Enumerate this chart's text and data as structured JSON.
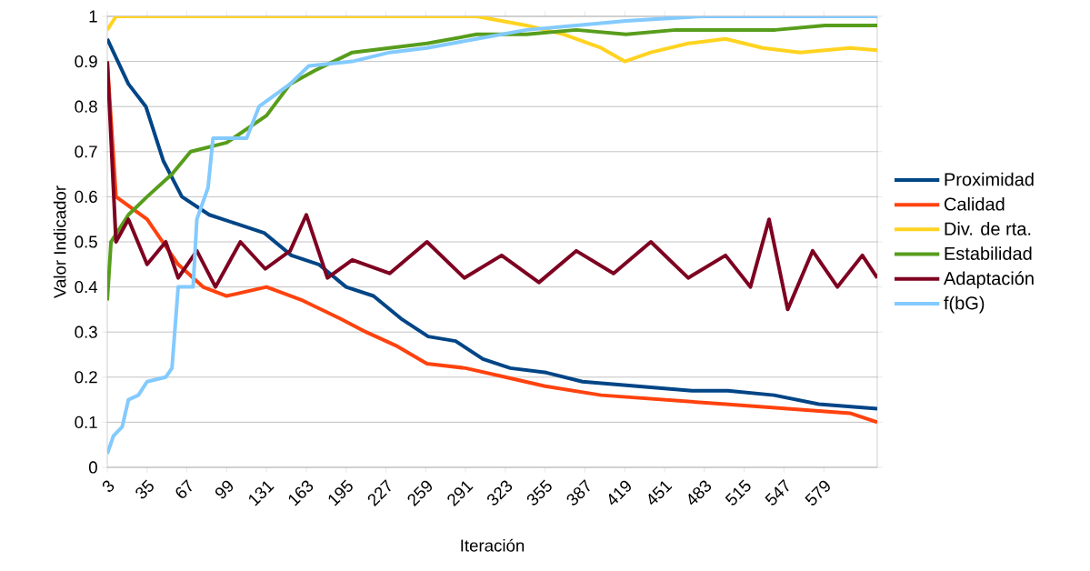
{
  "chart_data": {
    "type": "line",
    "xlabel": "Iteración",
    "ylabel": "Valor Indicador",
    "xlim": [
      3,
      622
    ],
    "ylim": [
      0,
      1
    ],
    "xticks": [
      3,
      35,
      67,
      99,
      131,
      163,
      195,
      227,
      259,
      291,
      323,
      355,
      387,
      419,
      451,
      483,
      515,
      547,
      579
    ],
    "yticks": [
      0,
      0.1,
      0.2,
      0.3,
      0.4,
      0.5,
      0.6,
      0.7,
      0.8,
      0.9,
      1
    ],
    "grid": "y",
    "legend": "right",
    "marker": "none",
    "line_style": "solid",
    "series": [
      {
        "name": "Proximidad",
        "color": "#004586",
        "x": [
          3,
          20,
          34,
          48,
          63,
          85,
          107,
          129,
          151,
          173,
          195,
          217,
          239,
          261,
          283,
          305,
          327,
          356,
          385,
          429,
          473,
          502,
          539,
          575,
          622
        ],
        "values": [
          0.95,
          0.85,
          0.8,
          0.68,
          0.6,
          0.56,
          0.54,
          0.52,
          0.47,
          0.45,
          0.4,
          0.38,
          0.33,
          0.29,
          0.28,
          0.24,
          0.22,
          0.21,
          0.19,
          0.18,
          0.17,
          0.17,
          0.16,
          0.14,
          0.13
        ]
      },
      {
        "name": "Calidad",
        "color": "#ff420e",
        "x": [
          3,
          10,
          35,
          60,
          80,
          99,
          131,
          160,
          190,
          211,
          235,
          260,
          291,
          323,
          355,
          400,
          450,
          500,
          550,
          600,
          622
        ],
        "values": [
          0.9,
          0.6,
          0.55,
          0.45,
          0.4,
          0.38,
          0.4,
          0.37,
          0.33,
          0.3,
          0.27,
          0.23,
          0.22,
          0.2,
          0.18,
          0.16,
          0.15,
          0.14,
          0.13,
          0.12,
          0.1
        ]
      },
      {
        "name": "Div. de rta.",
        "color": "#ffd320",
        "x": [
          3,
          10,
          100,
          200,
          300,
          340,
          370,
          400,
          419,
          440,
          470,
          500,
          530,
          560,
          600,
          622
        ],
        "values": [
          0.97,
          1,
          1,
          1,
          1,
          0.98,
          0.96,
          0.93,
          0.9,
          0.92,
          0.94,
          0.95,
          0.93,
          0.92,
          0.93,
          0.925
        ]
      },
      {
        "name": "Estabilidad",
        "color": "#579d1c",
        "x": [
          3,
          6,
          20,
          35,
          55,
          70,
          99,
          131,
          150,
          170,
          200,
          230,
          260,
          300,
          340,
          380,
          420,
          460,
          500,
          540,
          580,
          622
        ],
        "values": [
          0.37,
          0.5,
          0.56,
          0.6,
          0.65,
          0.7,
          0.72,
          0.78,
          0.85,
          0.88,
          0.92,
          0.93,
          0.94,
          0.96,
          0.96,
          0.97,
          0.96,
          0.97,
          0.97,
          0.97,
          0.98,
          0.98
        ]
      },
      {
        "name": "Adaptación",
        "color": "#7e0021",
        "x": [
          3,
          10,
          20,
          35,
          50,
          60,
          75,
          90,
          110,
          130,
          150,
          163,
          180,
          200,
          230,
          260,
          290,
          320,
          350,
          380,
          410,
          440,
          470,
          500,
          520,
          535,
          550,
          570,
          590,
          610,
          622
        ],
        "values": [
          0.9,
          0.5,
          0.55,
          0.45,
          0.5,
          0.42,
          0.48,
          0.4,
          0.5,
          0.44,
          0.48,
          0.56,
          0.42,
          0.46,
          0.43,
          0.5,
          0.42,
          0.47,
          0.41,
          0.48,
          0.43,
          0.5,
          0.42,
          0.47,
          0.4,
          0.55,
          0.35,
          0.48,
          0.4,
          0.47,
          0.42
        ]
      },
      {
        "name": "f(bG)",
        "color": "#83caff",
        "x": [
          3,
          8,
          15,
          20,
          28,
          35,
          50,
          55,
          60,
          72,
          75,
          84,
          88,
          115,
          125,
          150,
          165,
          200,
          230,
          260,
          300,
          340,
          380,
          420,
          480,
          622
        ],
        "values": [
          0.03,
          0.07,
          0.09,
          0.15,
          0.16,
          0.19,
          0.2,
          0.22,
          0.4,
          0.4,
          0.55,
          0.62,
          0.73,
          0.73,
          0.8,
          0.85,
          0.89,
          0.9,
          0.92,
          0.93,
          0.95,
          0.97,
          0.98,
          0.99,
          1,
          1
        ]
      }
    ]
  }
}
